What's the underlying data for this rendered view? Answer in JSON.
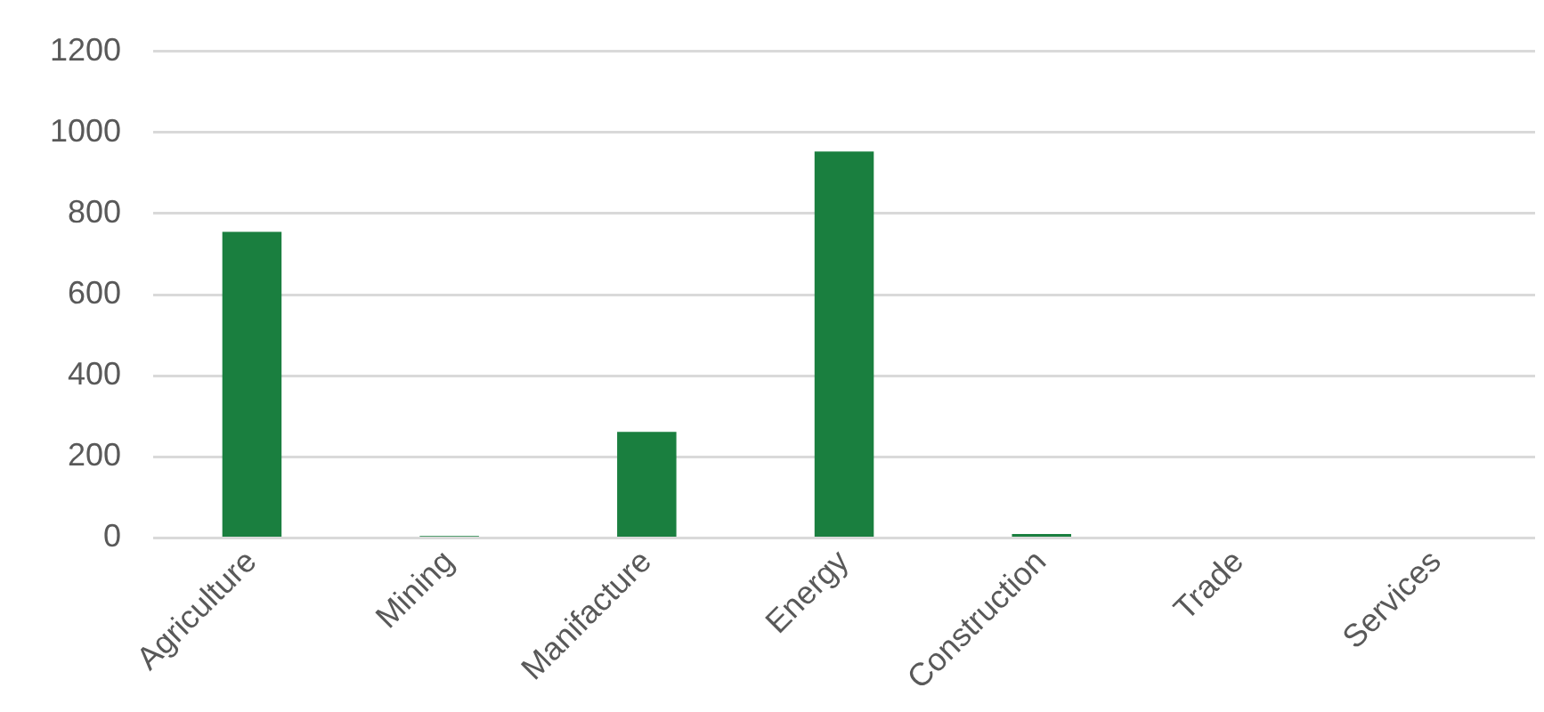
{
  "chart_data": {
    "type": "bar",
    "categories": [
      "Agriculture",
      "Mining",
      "Manifacture",
      "Energy",
      "Construction",
      "Trade",
      "Services"
    ],
    "values": [
      755,
      5,
      262,
      953,
      10,
      0,
      0
    ],
    "color": "#1a7f3f",
    "ylim": [
      0,
      1200
    ],
    "yticks": [
      0,
      200,
      400,
      600,
      800,
      1000,
      1200
    ],
    "grid": "y",
    "legend": false
  }
}
